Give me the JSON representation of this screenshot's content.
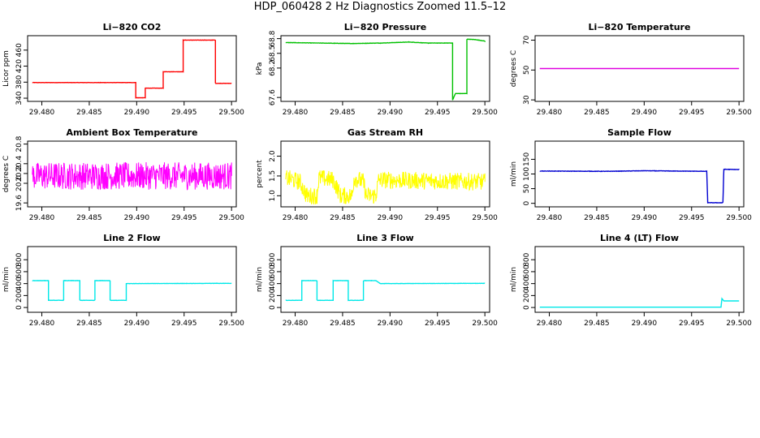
{
  "page": {
    "title": "HDP_060428  2 Hz Diagnostics Zoomed 11.5–12"
  },
  "chart_data": [
    {
      "type": "line",
      "title": "Li−820 CO2",
      "xlabel": "",
      "ylabel": "Licor ppm",
      "xlim": [
        29.4785,
        29.5005
      ],
      "ylim": [
        332,
        496
      ],
      "x_ticks": [
        "29.480",
        "29.485",
        "29.490",
        "29.495",
        "29.500"
      ],
      "y_ticks": [
        {
          "v": 340,
          "label": "340"
        },
        {
          "v": 380,
          "label": "380"
        },
        {
          "v": 420,
          "label": "420"
        },
        {
          "v": 460,
          "label": "460"
        }
      ],
      "series": [
        {
          "color": "#ff0000",
          "noise": 0.6,
          "points": [
            [
              29.479,
              379
            ],
            [
              29.4899,
              379
            ],
            [
              29.4899,
              341
            ],
            [
              29.4909,
              341
            ],
            [
              29.4909,
              365
            ],
            [
              29.4928,
              365
            ],
            [
              29.4928,
              406
            ],
            [
              29.4949,
              406
            ],
            [
              29.4949,
              485
            ],
            [
              29.4983,
              485
            ],
            [
              29.4983,
              377
            ],
            [
              29.5,
              377
            ]
          ]
        }
      ]
    },
    {
      "type": "line",
      "title": "Li−820 Pressure",
      "xlabel": "",
      "ylabel": "kPa",
      "xlim": [
        29.4785,
        29.5005
      ],
      "ylim": [
        67.52,
        68.86
      ],
      "x_ticks": [
        "29.480",
        "29.485",
        "29.490",
        "29.495",
        "29.500"
      ],
      "y_ticks": [
        {
          "v": 67.6,
          "label": "67.6"
        },
        {
          "v": 68.2,
          "label": "68.2"
        },
        {
          "v": 68.5,
          "label": "68.5"
        },
        {
          "v": 68.8,
          "label": "68.8"
        }
      ],
      "series": [
        {
          "color": "#00c000",
          "noise": 0.006,
          "points": [
            [
              29.479,
              68.72
            ],
            [
              29.486,
              68.7
            ],
            [
              29.489,
              68.71
            ],
            [
              29.492,
              68.73
            ],
            [
              29.494,
              68.71
            ],
            [
              29.4966,
              68.71
            ],
            [
              29.4966,
              67.55
            ],
            [
              29.4969,
              67.68
            ],
            [
              29.4981,
              67.68
            ],
            [
              29.4981,
              68.79
            ],
            [
              29.499,
              68.78
            ],
            [
              29.5,
              68.75
            ]
          ]
        }
      ]
    },
    {
      "type": "line",
      "title": "Li−820 Temperature",
      "xlabel": "",
      "ylabel": "degrees C",
      "xlim": [
        29.4785,
        29.5005
      ],
      "ylim": [
        29,
        73
      ],
      "x_ticks": [
        "29.480",
        "29.485",
        "29.490",
        "29.495",
        "29.500"
      ],
      "y_ticks": [
        {
          "v": 30,
          "label": "30"
        },
        {
          "v": 50,
          "label": "50"
        },
        {
          "v": 70,
          "label": "70"
        }
      ],
      "series": [
        {
          "color": "#e000e0",
          "noise": 0,
          "points": [
            [
              29.479,
              51
            ],
            [
              29.5,
              51
            ]
          ]
        }
      ]
    },
    {
      "type": "line",
      "title": "Ambient Box Temperature",
      "xlabel": "",
      "ylabel": "degrees C",
      "xlim": [
        29.4785,
        29.5005
      ],
      "ylim": [
        19.52,
        20.86
      ],
      "x_ticks": [
        "29.480",
        "29.485",
        "29.490",
        "29.495",
        "29.500"
      ],
      "y_ticks": [
        {
          "v": 19.6,
          "label": "19.6"
        },
        {
          "v": 20.0,
          "label": "20.0"
        },
        {
          "v": 20.2,
          "label": "20.2"
        },
        {
          "v": 20.4,
          "label": "20.4"
        },
        {
          "v": 20.8,
          "label": "20.8"
        }
      ],
      "series": [
        {
          "color": "#ff00ff",
          "noise": 0.28,
          "oscillate": true,
          "points": [
            [
              29.479,
              20.15
            ],
            [
              29.5,
              20.15
            ]
          ]
        }
      ]
    },
    {
      "type": "line",
      "title": "Gas Stream RH",
      "xlabel": "",
      "ylabel": "percent",
      "xlim": [
        29.4785,
        29.5005
      ],
      "ylim": [
        0.72,
        2.38
      ],
      "x_ticks": [
        "29.480",
        "29.485",
        "29.490",
        "29.495",
        "29.500"
      ],
      "y_ticks": [
        {
          "v": 1.0,
          "label": "1.0"
        },
        {
          "v": 1.5,
          "label": "1.5"
        },
        {
          "v": 2.0,
          "label": "2.0"
        }
      ],
      "series": [
        {
          "color": "#ffff00",
          "noise": 0.22,
          "oscillate": true,
          "points": [
            [
              29.479,
              1.45
            ],
            [
              29.4805,
              1.35
            ],
            [
              29.4812,
              1.0
            ],
            [
              29.4823,
              1.0
            ],
            [
              29.4825,
              1.45
            ],
            [
              29.484,
              1.4
            ],
            [
              29.4848,
              1.0
            ],
            [
              29.486,
              1.0
            ],
            [
              29.4862,
              1.45
            ],
            [
              29.4872,
              1.35
            ],
            [
              29.4875,
              1.0
            ],
            [
              29.4885,
              1.0
            ],
            [
              29.4888,
              1.4
            ],
            [
              29.5,
              1.35
            ]
          ]
        }
      ]
    },
    {
      "type": "line",
      "title": "Sample Flow",
      "xlabel": "",
      "ylabel": "ml/min",
      "xlim": [
        29.4785,
        29.5005
      ],
      "ylim": [
        -12,
        212
      ],
      "x_ticks": [
        "29.480",
        "29.485",
        "29.490",
        "29.495",
        "29.500"
      ],
      "y_ticks": [
        {
          "v": 0,
          "label": "0"
        },
        {
          "v": 50,
          "label": "50"
        },
        {
          "v": 100,
          "label": "100"
        },
        {
          "v": 150,
          "label": "150"
        }
      ],
      "series": [
        {
          "color": "#0000d0",
          "noise": 1.2,
          "points": [
            [
              29.479,
              110
            ],
            [
              29.486,
              109
            ],
            [
              29.49,
              111
            ],
            [
              29.4966,
              109
            ],
            [
              29.4967,
              2
            ],
            [
              29.4983,
              2
            ],
            [
              29.4984,
              116
            ],
            [
              29.5,
              115
            ]
          ]
        }
      ]
    },
    {
      "type": "line",
      "title": "Line 2 Flow",
      "xlabel": "",
      "ylabel": "ml/min",
      "xlim": [
        29.4785,
        29.5005
      ],
      "ylim": [
        -80,
        1020
      ],
      "x_ticks": [
        "29.480",
        "29.485",
        "29.490",
        "29.495",
        "29.500"
      ],
      "y_ticks": [
        {
          "v": 0,
          "label": "0"
        },
        {
          "v": 200,
          "label": "200"
        },
        {
          "v": 400,
          "label": "400"
        },
        {
          "v": 600,
          "label": "600"
        },
        {
          "v": 800,
          "label": "800"
        }
      ],
      "series": [
        {
          "color": "#00e8e8",
          "noise": 4,
          "points": [
            [
              29.479,
              450
            ],
            [
              29.4807,
              450
            ],
            [
              29.4807,
              120
            ],
            [
              29.4823,
              120
            ],
            [
              29.4823,
              450
            ],
            [
              29.484,
              450
            ],
            [
              29.484,
              120
            ],
            [
              29.4856,
              120
            ],
            [
              29.4856,
              450
            ],
            [
              29.4872,
              450
            ],
            [
              29.4872,
              120
            ],
            [
              29.4889,
              120
            ],
            [
              29.4889,
              400
            ],
            [
              29.5,
              405
            ]
          ]
        }
      ]
    },
    {
      "type": "line",
      "title": "Line 3 Flow",
      "xlabel": "",
      "ylabel": "ml/min",
      "xlim": [
        29.4785,
        29.5005
      ],
      "ylim": [
        -80,
        1020
      ],
      "x_ticks": [
        "29.480",
        "29.485",
        "29.490",
        "29.495",
        "29.500"
      ],
      "y_ticks": [
        {
          "v": 0,
          "label": "0"
        },
        {
          "v": 200,
          "label": "200"
        },
        {
          "v": 400,
          "label": "400"
        },
        {
          "v": 600,
          "label": "600"
        },
        {
          "v": 800,
          "label": "800"
        }
      ],
      "series": [
        {
          "color": "#00e8e8",
          "noise": 4,
          "points": [
            [
              29.479,
              120
            ],
            [
              29.4807,
              120
            ],
            [
              29.4807,
              450
            ],
            [
              29.4823,
              450
            ],
            [
              29.4823,
              120
            ],
            [
              29.484,
              120
            ],
            [
              29.484,
              450
            ],
            [
              29.4856,
              450
            ],
            [
              29.4856,
              120
            ],
            [
              29.4872,
              120
            ],
            [
              29.4872,
              450
            ],
            [
              29.4885,
              450
            ],
            [
              29.489,
              400
            ],
            [
              29.5,
              405
            ]
          ]
        }
      ]
    },
    {
      "type": "line",
      "title": "Line 4 (LT) Flow",
      "xlabel": "",
      "ylabel": "ml/min",
      "xlim": [
        29.4785,
        29.5005
      ],
      "ylim": [
        -80,
        1020
      ],
      "x_ticks": [
        "29.480",
        "29.485",
        "29.490",
        "29.495",
        "29.500"
      ],
      "y_ticks": [
        {
          "v": 0,
          "label": "0"
        },
        {
          "v": 200,
          "label": "200"
        },
        {
          "v": 400,
          "label": "400"
        },
        {
          "v": 600,
          "label": "600"
        },
        {
          "v": 800,
          "label": "800"
        }
      ],
      "series": [
        {
          "color": "#00e8e8",
          "noise": 0,
          "points": [
            [
              29.479,
              5
            ],
            [
              29.4981,
              5
            ],
            [
              29.4982,
              150
            ],
            [
              29.4984,
              110
            ],
            [
              29.5,
              110
            ]
          ]
        }
      ]
    }
  ]
}
